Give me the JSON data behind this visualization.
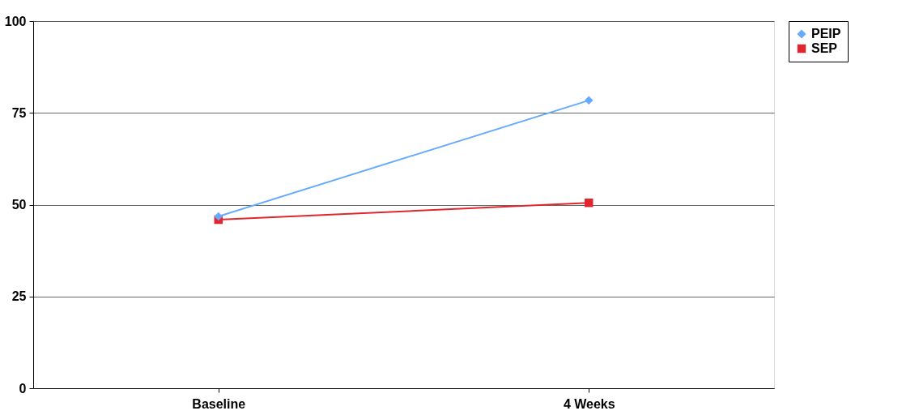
{
  "chart_data": {
    "type": "line",
    "categories": [
      "Baseline",
      "4 Weeks"
    ],
    "series": [
      {
        "name": "PEIP",
        "color": "#66aaff",
        "marker": "diamond",
        "values": [
          46.8,
          78.4
        ]
      },
      {
        "name": "SEP",
        "color": "#e0262e",
        "marker": "square",
        "values": [
          45.9,
          50.5
        ]
      }
    ],
    "ylim": [
      0,
      100
    ],
    "yticks": [
      0,
      25,
      50,
      75,
      100
    ],
    "grid": "y",
    "legend": "right",
    "line_style": "solid"
  }
}
